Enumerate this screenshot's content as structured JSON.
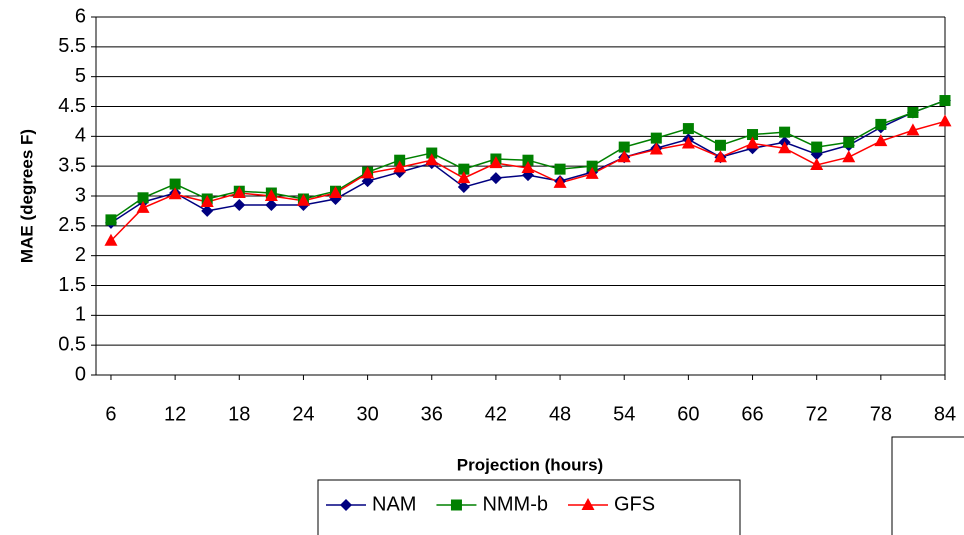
{
  "chart_data": {
    "type": "line",
    "x_label": "Projection (hours)",
    "y_label": "MAE (degrees F)",
    "x": [
      6,
      9,
      12,
      15,
      18,
      21,
      24,
      27,
      30,
      33,
      36,
      39,
      42,
      45,
      48,
      51,
      54,
      57,
      60,
      63,
      66,
      69,
      72,
      75,
      78,
      81,
      84
    ],
    "series": [
      {
        "name": "NAM",
        "color": "#000080",
        "marker": "diamond",
        "values": [
          2.55,
          2.9,
          3.05,
          2.75,
          2.85,
          2.85,
          2.85,
          2.95,
          3.25,
          3.4,
          3.55,
          3.15,
          3.3,
          3.35,
          3.25,
          3.4,
          3.65,
          3.8,
          3.95,
          3.65,
          3.8,
          3.9,
          3.7,
          3.85,
          4.15,
          4.4,
          4.6
        ]
      },
      {
        "name": "NMM-b",
        "color": "#008000",
        "marker": "square",
        "values": [
          2.6,
          2.97,
          3.2,
          2.95,
          3.08,
          3.05,
          2.95,
          3.08,
          3.4,
          3.6,
          3.72,
          3.45,
          3.62,
          3.6,
          3.45,
          3.5,
          3.82,
          3.97,
          4.13,
          3.85,
          4.03,
          4.07,
          3.82,
          3.9,
          4.2,
          4.4,
          4.6
        ]
      },
      {
        "name": "GFS",
        "color": "#ff0000",
        "marker": "triangle",
        "values": [
          2.25,
          2.8,
          3.03,
          2.9,
          3.05,
          3.0,
          2.92,
          3.05,
          3.38,
          3.48,
          3.6,
          3.3,
          3.55,
          3.47,
          3.22,
          3.37,
          3.65,
          3.78,
          3.88,
          3.65,
          3.88,
          3.8,
          3.52,
          3.65,
          3.92,
          4.1,
          4.25
        ]
      }
    ],
    "xlim": [
      4.6,
      84
    ],
    "xticks": [
      6,
      12,
      18,
      24,
      30,
      36,
      42,
      48,
      54,
      60,
      66,
      72,
      78,
      84
    ],
    "ylim": [
      0,
      6
    ],
    "yticks": [
      0,
      0.5,
      1,
      1.5,
      2,
      2.5,
      3,
      3.5,
      4,
      4.5,
      5,
      5.5,
      6
    ],
    "grid": true,
    "legend": "bottom"
  }
}
